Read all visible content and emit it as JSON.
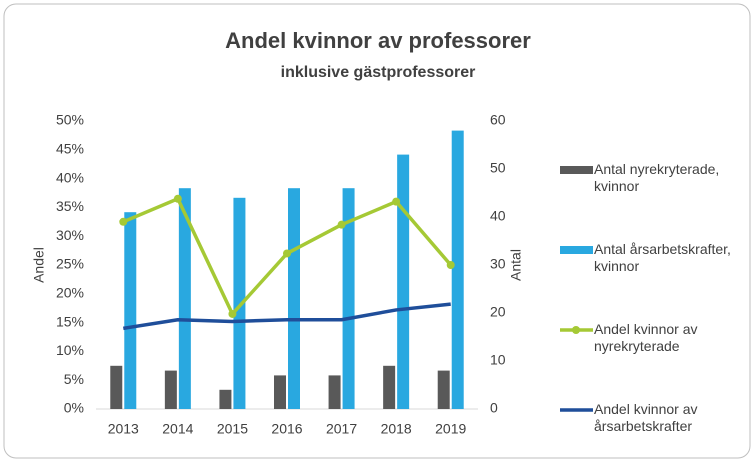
{
  "chart_data": {
    "type": "combo",
    "title": "Andel kvinnor av professorer",
    "subtitle": "inklusive gästprofessorer",
    "ylabel": "Andel",
    "y2label": "Antal",
    "categories": [
      "2013",
      "2014",
      "2015",
      "2016",
      "2017",
      "2018",
      "2019"
    ],
    "ylim": [
      0,
      50
    ],
    "yticks": [
      {
        "value": 0,
        "label": "0%"
      },
      {
        "value": 5,
        "label": "5%"
      },
      {
        "value": 10,
        "label": "10%"
      },
      {
        "value": 15,
        "label": "15%"
      },
      {
        "value": 20,
        "label": "20%"
      },
      {
        "value": 25,
        "label": "25%"
      },
      {
        "value": 30,
        "label": "30%"
      },
      {
        "value": 35,
        "label": "35%"
      },
      {
        "value": 40,
        "label": "40%"
      },
      {
        "value": 45,
        "label": "45%"
      },
      {
        "value": 50,
        "label": "50%"
      }
    ],
    "y2lim": [
      0,
      60
    ],
    "y2ticks": [
      0,
      10,
      20,
      30,
      40,
      50,
      60
    ],
    "grid": false,
    "legend": "right",
    "series": [
      {
        "name": "Antal nyrekryterade, kvinnor",
        "type": "bar",
        "axis": "y2",
        "color": "#595959",
        "values": [
          9,
          8,
          4,
          7,
          7,
          9,
          8
        ]
      },
      {
        "name": "Antal årsarbetskrafter, kvinnor",
        "type": "bar",
        "axis": "y2",
        "color": "#29a8e0",
        "values": [
          41,
          46,
          44,
          46,
          46,
          53,
          58
        ]
      },
      {
        "name": "Andel kvinnor av nyrekryterade",
        "type": "line",
        "marker": true,
        "color": "#a5c935",
        "values": [
          32.5,
          36.5,
          16.5,
          27,
          32,
          36,
          25
        ]
      },
      {
        "name": "Andel kvinnor av årsarbetskrafter",
        "type": "line",
        "marker": false,
        "color": "#1f4e9a",
        "values": [
          14,
          15.5,
          15.2,
          15.5,
          15.5,
          17.2,
          18.2
        ]
      }
    ]
  }
}
